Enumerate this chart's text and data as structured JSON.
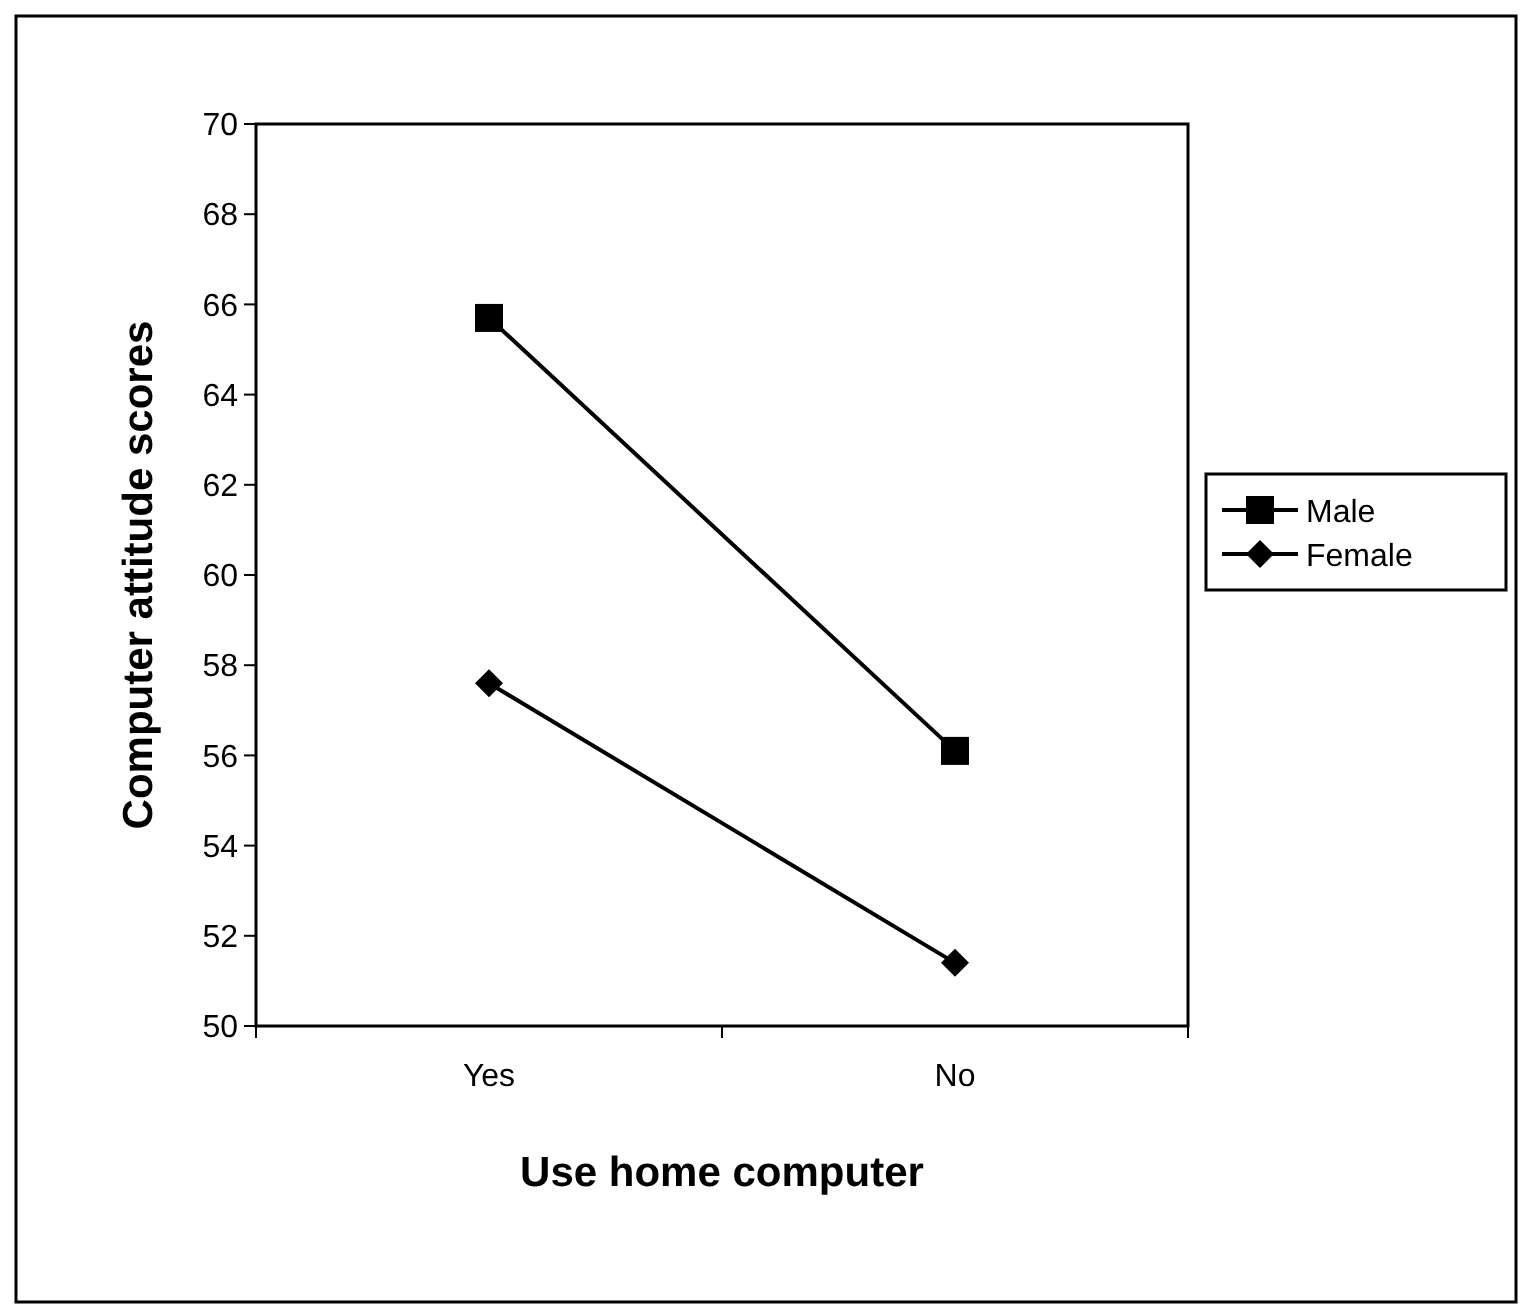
{
  "chart_data": {
    "type": "line",
    "xlabel": "Use home computer",
    "ylabel": "Computer attitude scores",
    "categories": [
      "Yes",
      "No"
    ],
    "series": [
      {
        "name": "Male",
        "color": "#000000",
        "marker": "square",
        "values": [
          65.7,
          56.1
        ]
      },
      {
        "name": "Female",
        "color": "#000000",
        "marker": "diamond",
        "values": [
          57.6,
          51.4
        ]
      }
    ],
    "ylim": [
      50,
      70
    ],
    "yticks": [
      50,
      52,
      54,
      56,
      58,
      60,
      62,
      64,
      66,
      68,
      70
    ],
    "legend": "right",
    "grid": false
  }
}
